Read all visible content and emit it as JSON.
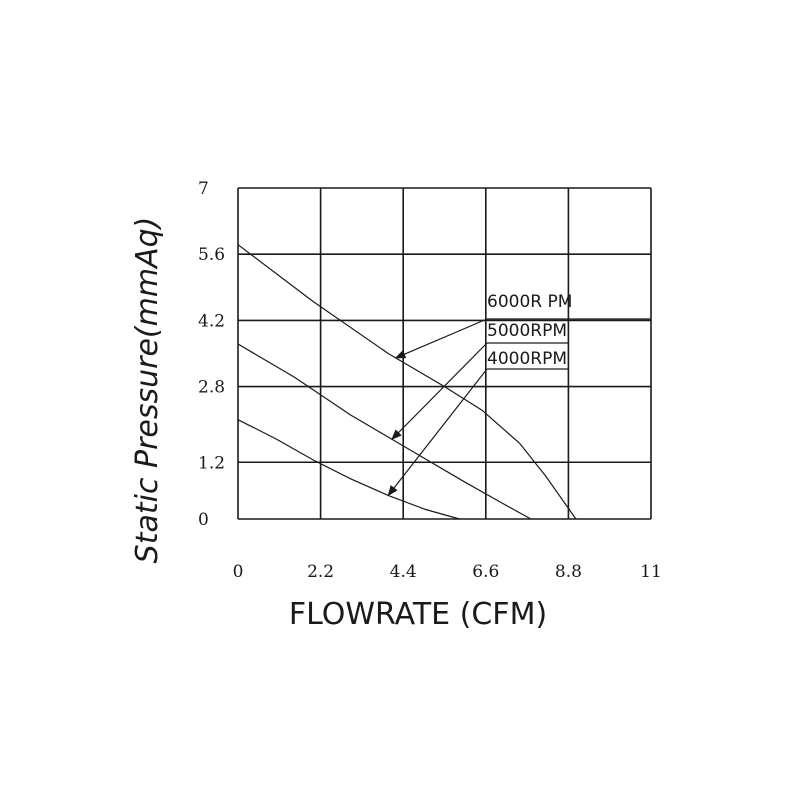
{
  "chart_data": {
    "type": "line",
    "xlabel": "FLOWRATE (CFM)",
    "ylabel": "Static Pressure(mmAq)",
    "xlim": [
      0,
      11
    ],
    "ylim": [
      0,
      7
    ],
    "x_ticks": [
      "0",
      "2.2",
      "4.4",
      "6.6",
      "8.8",
      "11"
    ],
    "y_ticks": [
      "0",
      "1.2",
      "2.8",
      "4.2",
      "5.6",
      "7"
    ],
    "grid": true,
    "legend_position": "right",
    "series": [
      {
        "name": "6000R PM",
        "x": [
          0,
          2,
          4,
          5.5,
          6.5,
          7.5,
          8.2,
          9.0
        ],
        "y": [
          5.8,
          4.6,
          3.5,
          2.8,
          2.3,
          1.6,
          0.9,
          0.0
        ]
      },
      {
        "name": "5000RPM",
        "x": [
          0,
          1.5,
          3,
          4.5,
          6,
          7.0,
          7.8
        ],
        "y": [
          3.7,
          3.0,
          2.2,
          1.5,
          0.8,
          0.35,
          0.0
        ]
      },
      {
        "name": "4000RPM",
        "x": [
          0,
          1,
          2,
          3,
          4,
          5,
          5.9
        ],
        "y": [
          2.1,
          1.7,
          1.25,
          0.85,
          0.5,
          0.2,
          0.0
        ]
      }
    ]
  }
}
